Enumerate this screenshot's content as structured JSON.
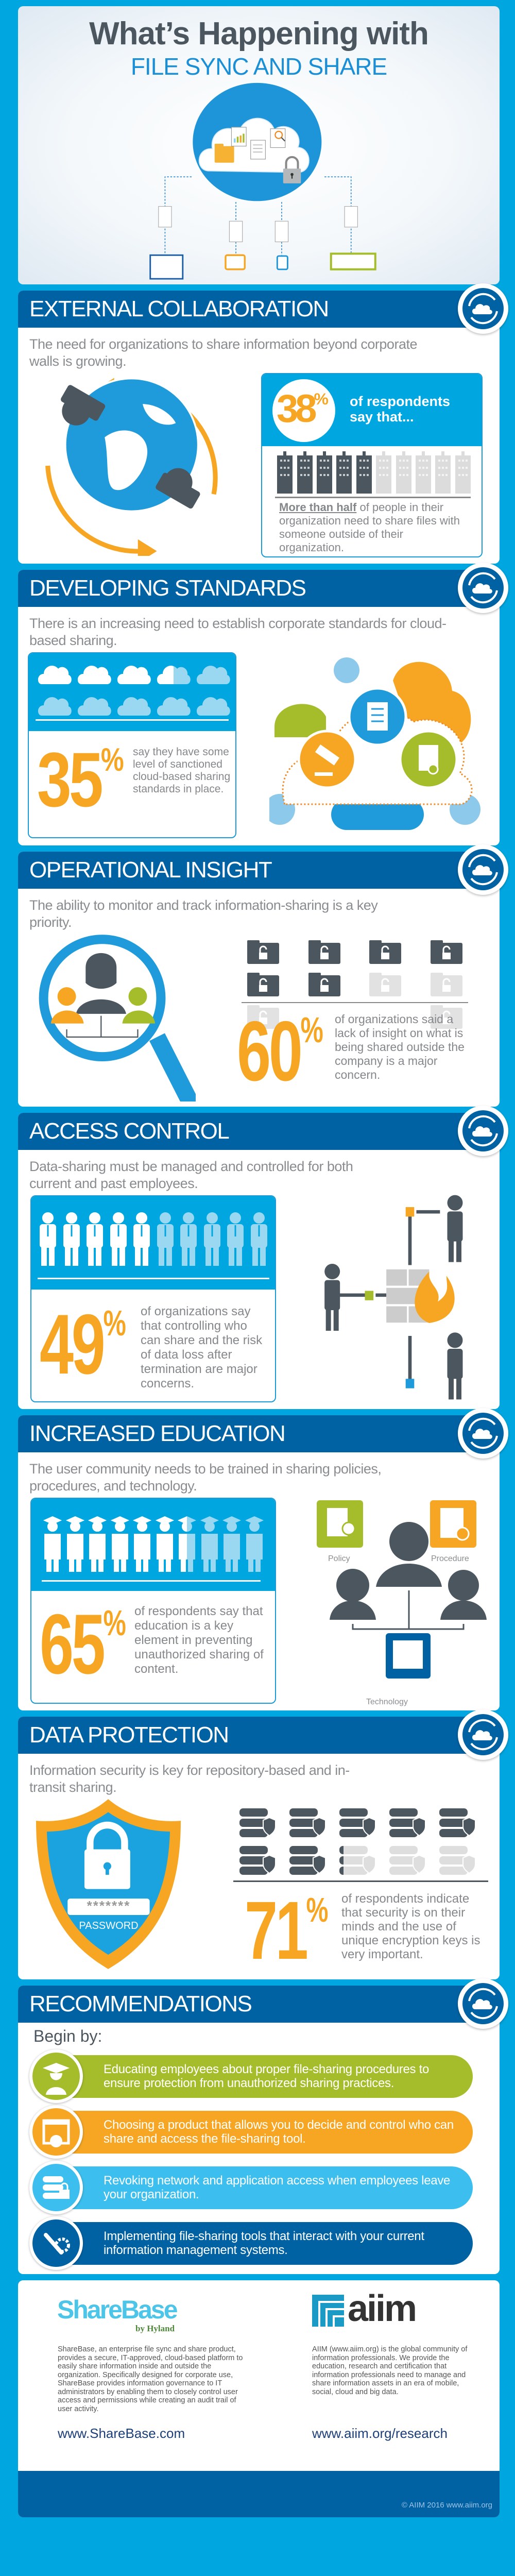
{
  "colors": {
    "background": "#00a6e0",
    "header": "#0062a3",
    "accent_orange": "#f6a623",
    "accent_green": "#a5bd2b",
    "dark_gray": "#4b565f"
  },
  "hero": {
    "title": "What’s Happening with",
    "subtitle": "FILE SYNC AND SHARE",
    "icons": [
      "cloud",
      "folder-icon",
      "chart-document-icon",
      "document-icon",
      "search-document-icon",
      "padlock-icon",
      "laptop-icon",
      "tablet-icon",
      "smartphone-icon",
      "desktop-monitor-icon"
    ]
  },
  "sections": [
    {
      "title": "EXTERNAL COLLABORATION",
      "description": "The need for organizations to share information beyond corporate walls is growing.",
      "stat": "38",
      "stat_suffix": "%",
      "stat_lead": "of respondents say that...",
      "stat_emphasis": "More than half",
      "stat_text": " of people in their organization need to share files with someone outside of their organization.",
      "waffle": {
        "icon": "building",
        "total": 10,
        "filled": 5
      }
    },
    {
      "title": "DEVELOPING STANDARDS",
      "description": "There is an increasing need to establish corporate standards for cloud-based sharing.",
      "stat": "35",
      "stat_suffix": "%",
      "stat_text": "say they have some level of sanctioned cloud-based sharing standards in place.",
      "waffle": {
        "icon": "cloud",
        "total": 10,
        "filled": 3.5
      }
    },
    {
      "title": "OPERATIONAL INSIGHT",
      "description": "The ability to monitor and track information-sharing is a key priority.",
      "stat": "60",
      "stat_suffix": "%",
      "stat_text": "of organizations said a lack of insight on what is being shared outside the company is a major concern.",
      "waffle": {
        "icon": "unlocked-folder",
        "total": 10,
        "filled": 6
      }
    },
    {
      "title": "ACCESS CONTROL",
      "description": "Data-sharing must be managed and controlled for both current and past employees.",
      "stat": "49",
      "stat_suffix": "%",
      "stat_text": "of organizations say that controlling who can share and the risk of data loss after termination are major concerns.",
      "waffle": {
        "icon": "person",
        "total": 10,
        "filled": 4.9
      }
    },
    {
      "title": "INCREASED EDUCATION",
      "description": "The user community needs to be trained in sharing policies, procedures, and technology.",
      "stat": "65",
      "stat_suffix": "%",
      "stat_text": "of respondents say that education is a key element in preventing unauthorized sharing of content.",
      "waffle": {
        "icon": "graduate",
        "total": 10,
        "filled": 6.5
      },
      "labels": {
        "policy": "Policy",
        "procedure": "Procedure",
        "technology": "Technology"
      }
    },
    {
      "title": "DATA PROTECTION",
      "description": "Information security is key for repository-based and in-transit sharing.",
      "stat": "71",
      "stat_suffix": "%",
      "stat_text": "of respondents indicate that security is on their minds and the use of unique encryption keys is very important.",
      "waffle": {
        "icon": "secure-server",
        "total": 10,
        "filled": 7.1
      },
      "password_mask": "*******",
      "password_label": "PASSWORD"
    }
  ],
  "recommendations": {
    "title": "RECOMMENDATIONS",
    "intro": "Begin by:",
    "items": [
      {
        "text": "Educating employees about proper file-sharing procedures to ensure protection from unauthorized sharing practices.",
        "color": "#a5bd2b",
        "icon": "graduate-icon"
      },
      {
        "text": "Choosing a product that allows you to decide and control who can share and access the file-sharing tool.",
        "color": "#f6a623",
        "icon": "app-settings-icon"
      },
      {
        "text": "Revoking network and application access when employees leave your organization.",
        "color": "#3cbfee",
        "icon": "server-lock-icon"
      },
      {
        "text": "Implementing file-sharing tools that interact with your current information management systems.",
        "color": "#0062a3",
        "icon": "wrench-gear-icon"
      }
    ]
  },
  "footer": {
    "sharebase": {
      "logo": "ShareBase",
      "logo_sub": "by Hyland",
      "text": "ShareBase, an enterprise file sync and share product, provides a secure, IT-approved, cloud-based platform to easily share information inside and outside the organization. Specifically designed for corporate use, ShareBase provides information governance to IT administrators by enabling them to closely control user access and permissions while creating an audit trail of user activity.",
      "url": "www.ShareBase.com"
    },
    "aiim": {
      "logo": "aiim",
      "text": "AIIM (www.aiim.org) is the global community of information professionals.  We provide the education, research and certification that information professionals need to manage and share information assets in an era of mobile, social, cloud and big data.",
      "url": "www.aiim.org/research"
    },
    "copyright": "© AIIM 2016 www.aiim.org"
  }
}
